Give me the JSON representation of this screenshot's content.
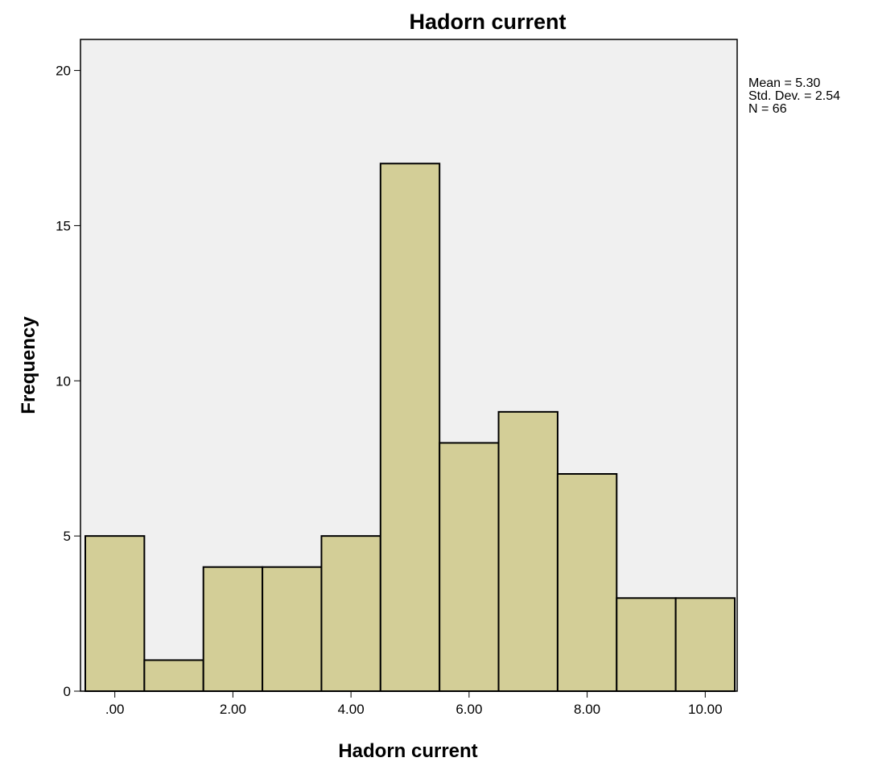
{
  "chart_data": {
    "type": "bar",
    "title": "Hadorn current",
    "xlabel": "Hadorn current",
    "ylabel": "Frequency",
    "categories": [
      "0",
      "1",
      "2",
      "3",
      "4",
      "5",
      "6",
      "7",
      "8",
      "9",
      "10"
    ],
    "bin_centers": [
      0,
      1,
      2,
      3,
      4,
      5,
      6,
      7,
      8,
      9,
      10
    ],
    "bin_width": 1,
    "values": [
      5,
      1,
      4,
      4,
      5,
      17,
      8,
      9,
      7,
      3,
      3
    ],
    "xlim": [
      -0.5,
      10.5
    ],
    "ylim": [
      0,
      21
    ],
    "x_ticks": [
      0,
      2,
      4,
      6,
      8,
      10
    ],
    "x_tick_labels": [
      ".00",
      "2.00",
      "4.00",
      "6.00",
      "8.00",
      "10.00"
    ],
    "y_ticks": [
      0,
      5,
      10,
      15,
      20
    ],
    "y_tick_labels": [
      "0",
      "5",
      "10",
      "15",
      "20"
    ],
    "grid": false,
    "stats": {
      "mean": "Mean = 5.30",
      "std": "Std. Dev. = 2.54",
      "n": "N = 66"
    },
    "colors": {
      "plot_background": "#f0f0f0",
      "bar_fill": "#d3ce97",
      "bar_stroke": "#000000"
    }
  }
}
